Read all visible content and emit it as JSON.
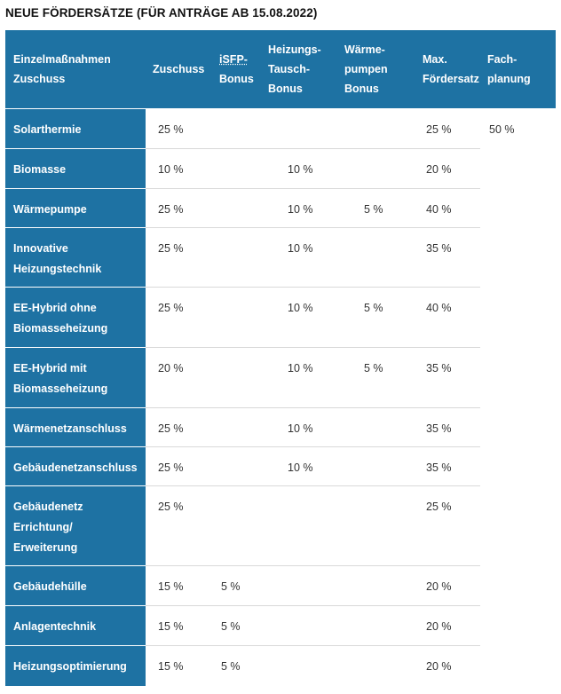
{
  "title": "NEUE FÖRDERSÄTZE (FÜR ANTRÄGE AB 15.08.2022)",
  "headers": [
    [
      "Einzelmaßnahmen",
      "Zuschuss"
    ],
    [
      "Zuschuss"
    ],
    [
      "iSFP-",
      "Bonus"
    ],
    [
      "Heizungs-",
      "Tausch-",
      "Bonus"
    ],
    [
      "Wärme-",
      "pumpen",
      "Bonus"
    ],
    [
      "Max.",
      "Fördersatz"
    ],
    [
      "Fach-",
      "planung"
    ]
  ],
  "rows": [
    {
      "label": [
        "Solarthermie"
      ],
      "zuschuss": "25 %",
      "isfp": "",
      "tausch": "",
      "waerme": "",
      "max": "25 %",
      "fach": "50 %"
    },
    {
      "label": [
        "Biomasse"
      ],
      "zuschuss": "10 %",
      "isfp": "",
      "tausch": "10 %",
      "waerme": "",
      "max": "20 %",
      "fach": ""
    },
    {
      "label": [
        "Wärmepumpe"
      ],
      "zuschuss": "25 %",
      "isfp": "",
      "tausch": "10 %",
      "waerme": "5 %",
      "max": "40 %",
      "fach": ""
    },
    {
      "label": [
        "Innovative",
        "Heizungstechnik"
      ],
      "zuschuss": "25 %",
      "isfp": "",
      "tausch": "10 %",
      "waerme": "",
      "max": "35 %",
      "fach": ""
    },
    {
      "label": [
        "EE-Hybrid ohne",
        "Biomasseheizung"
      ],
      "zuschuss": "25 %",
      "isfp": "",
      "tausch": "10 %",
      "waerme": "5 %",
      "max": "40 %",
      "fach": ""
    },
    {
      "label": [
        "EE-Hybrid mit",
        "Biomasseheizung"
      ],
      "zuschuss": "20 %",
      "isfp": "",
      "tausch": "10 %",
      "waerme": "5 %",
      "max": "35 %",
      "fach": ""
    },
    {
      "label": [
        "Wärmenetzanschluss"
      ],
      "zuschuss": "25 %",
      "isfp": "",
      "tausch": "10 %",
      "waerme": "",
      "max": "35 %",
      "fach": ""
    },
    {
      "label": [
        "Gebäudenetzanschluss"
      ],
      "zuschuss": "25 %",
      "isfp": "",
      "tausch": "10 %",
      "waerme": "",
      "max": "35 %",
      "fach": ""
    },
    {
      "label": [
        "Gebäudenetz",
        "Errichtung/",
        "Erweiterung"
      ],
      "zuschuss": "25 %",
      "isfp": "",
      "tausch": "",
      "waerme": "",
      "max": "25 %",
      "fach": ""
    },
    {
      "label": [
        "Gebäudehülle"
      ],
      "zuschuss": "15 %",
      "isfp": "5 %",
      "tausch": "",
      "waerme": "",
      "max": "20 %",
      "fach": ""
    },
    {
      "label": [
        "Anlagentechnik"
      ],
      "zuschuss": "15 %",
      "isfp": "5 %",
      "tausch": "",
      "waerme": "",
      "max": "20 %",
      "fach": ""
    },
    {
      "label": [
        "Heizungsoptimierung"
      ],
      "zuschuss": "15 %",
      "isfp": "5 %",
      "tausch": "",
      "waerme": "",
      "max": "20 %",
      "fach": ""
    }
  ]
}
